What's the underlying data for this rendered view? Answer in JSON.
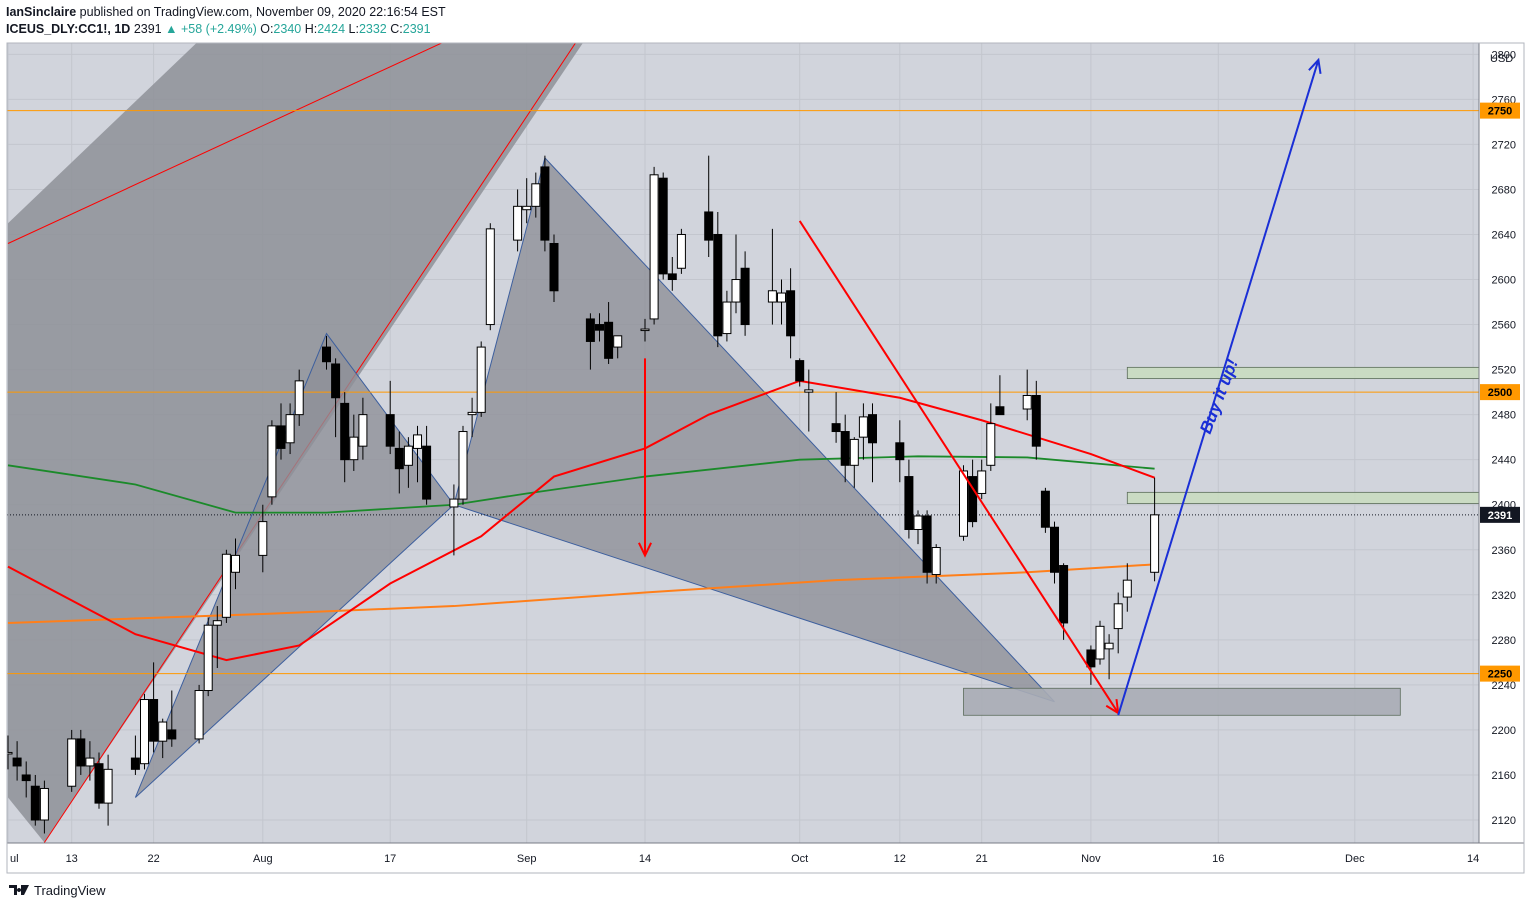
{
  "header": {
    "author": "IanSinclaire",
    "published_text": "published on TradingView.com, November 09, 2020 22:16:54 EST",
    "symbol": "ICEUS_DLY:CC1!, 1D",
    "last": "2391",
    "change": "+58 (+2.49%)",
    "o_label": "O:",
    "o_value": "2340",
    "h_label": "H:",
    "h_value": "2424",
    "l_label": "L:",
    "l_value": "2332",
    "c_label": "C:",
    "c_value": "2391"
  },
  "footer": {
    "brand": "TradingView"
  },
  "colors": {
    "background": "#d1d4dc",
    "up_candle": "#ffffff",
    "down_candle": "#000000",
    "ma_red": "#ff0000",
    "ma_green": "#1b8a2a",
    "ma_orange": "#ff7f1a",
    "level_orange": "#ff9800",
    "blue_arrow": "#1a2fd6",
    "zone_green": "#c9dcc0",
    "zone_gray": "#a9acb5",
    "pattern_fill": "#8e9098",
    "change_text": "#26a69a"
  },
  "chart_data": {
    "type": "candlestick",
    "currency": "USD",
    "ylim": [
      2100,
      2795
    ],
    "y_ticks": [
      2120,
      2160,
      2200,
      2240,
      2280,
      2320,
      2360,
      2400,
      2440,
      2480,
      2520,
      2560,
      2600,
      2640,
      2680,
      2720,
      2760,
      2800
    ],
    "x_ticks": [
      {
        "label": "ul",
        "date": "2020-07-06"
      },
      {
        "label": "13",
        "date": "2020-07-13"
      },
      {
        "label": "22",
        "date": "2020-07-22"
      },
      {
        "label": "Aug",
        "date": "2020-08-03"
      },
      {
        "label": "17",
        "date": "2020-08-17"
      },
      {
        "label": "Sep",
        "date": "2020-09-01"
      },
      {
        "label": "14",
        "date": "2020-09-14"
      },
      {
        "label": "Oct",
        "date": "2020-10-01"
      },
      {
        "label": "12",
        "date": "2020-10-12"
      },
      {
        "label": "21",
        "date": "2020-10-21"
      },
      {
        "label": "Nov",
        "date": "2020-11-02"
      },
      {
        "label": "16",
        "date": "2020-11-16"
      },
      {
        "label": "Dec",
        "date": "2020-12-01"
      },
      {
        "label": "14",
        "date": "2020-12-14"
      }
    ],
    "candles": [
      {
        "d": "2020-07-06",
        "o": 2180,
        "h": 2195,
        "l": 2165,
        "c": 2180
      },
      {
        "d": "2020-07-07",
        "o": 2175,
        "h": 2190,
        "l": 2155,
        "c": 2168
      },
      {
        "d": "2020-07-08",
        "o": 2160,
        "h": 2172,
        "l": 2140,
        "c": 2155
      },
      {
        "d": "2020-07-09",
        "o": 2150,
        "h": 2160,
        "l": 2115,
        "c": 2120
      },
      {
        "d": "2020-07-10",
        "o": 2120,
        "h": 2155,
        "l": 2108,
        "c": 2148
      },
      {
        "d": "2020-07-13",
        "o": 2150,
        "h": 2200,
        "l": 2145,
        "c": 2192
      },
      {
        "d": "2020-07-14",
        "o": 2192,
        "h": 2200,
        "l": 2160,
        "c": 2168
      },
      {
        "d": "2020-07-15",
        "o": 2168,
        "h": 2190,
        "l": 2155,
        "c": 2175
      },
      {
        "d": "2020-07-16",
        "o": 2170,
        "h": 2180,
        "l": 2130,
        "c": 2135
      },
      {
        "d": "2020-07-17",
        "o": 2135,
        "h": 2178,
        "l": 2115,
        "c": 2165
      },
      {
        "d": "2020-07-20",
        "o": 2175,
        "h": 2195,
        "l": 2160,
        "c": 2165
      },
      {
        "d": "2020-07-21",
        "o": 2170,
        "h": 2232,
        "l": 2165,
        "c": 2227
      },
      {
        "d": "2020-07-22",
        "o": 2227,
        "h": 2260,
        "l": 2180,
        "c": 2190
      },
      {
        "d": "2020-07-23",
        "o": 2190,
        "h": 2210,
        "l": 2175,
        "c": 2207
      },
      {
        "d": "2020-07-24",
        "o": 2200,
        "h": 2235,
        "l": 2185,
        "c": 2192
      },
      {
        "d": "2020-07-27",
        "o": 2192,
        "h": 2240,
        "l": 2188,
        "c": 2235
      },
      {
        "d": "2020-07-28",
        "o": 2235,
        "h": 2300,
        "l": 2230,
        "c": 2293
      },
      {
        "d": "2020-07-29",
        "o": 2293,
        "h": 2310,
        "l": 2255,
        "c": 2297
      },
      {
        "d": "2020-07-30",
        "o": 2300,
        "h": 2360,
        "l": 2295,
        "c": 2356
      },
      {
        "d": "2020-07-31",
        "o": 2340,
        "h": 2370,
        "l": 2325,
        "c": 2355
      },
      {
        "d": "2020-08-03",
        "o": 2355,
        "h": 2400,
        "l": 2340,
        "c": 2385
      },
      {
        "d": "2020-08-04",
        "o": 2407,
        "h": 2475,
        "l": 2400,
        "c": 2470
      },
      {
        "d": "2020-08-05",
        "o": 2470,
        "h": 2490,
        "l": 2440,
        "c": 2450
      },
      {
        "d": "2020-08-06",
        "o": 2455,
        "h": 2490,
        "l": 2445,
        "c": 2480
      },
      {
        "d": "2020-08-07",
        "o": 2480,
        "h": 2520,
        "l": 2470,
        "c": 2510
      },
      {
        "d": "2020-08-10",
        "o": 2540,
        "h": 2550,
        "l": 2520,
        "c": 2527
      },
      {
        "d": "2020-08-11",
        "o": 2525,
        "h": 2530,
        "l": 2460,
        "c": 2495
      },
      {
        "d": "2020-08-12",
        "o": 2490,
        "h": 2500,
        "l": 2420,
        "c": 2440
      },
      {
        "d": "2020-08-13",
        "o": 2440,
        "h": 2480,
        "l": 2430,
        "c": 2460
      },
      {
        "d": "2020-08-14",
        "o": 2452,
        "h": 2495,
        "l": 2440,
        "c": 2480
      },
      {
        "d": "2020-08-17",
        "o": 2480,
        "h": 2510,
        "l": 2445,
        "c": 2452
      },
      {
        "d": "2020-08-18",
        "o": 2450,
        "h": 2465,
        "l": 2410,
        "c": 2432
      },
      {
        "d": "2020-08-19",
        "o": 2435,
        "h": 2460,
        "l": 2415,
        "c": 2452
      },
      {
        "d": "2020-08-20",
        "o": 2450,
        "h": 2470,
        "l": 2420,
        "c": 2462
      },
      {
        "d": "2020-08-21",
        "o": 2452,
        "h": 2470,
        "l": 2400,
        "c": 2405
      },
      {
        "d": "2020-08-24",
        "o": 2398,
        "h": 2418,
        "l": 2355,
        "c": 2405
      },
      {
        "d": "2020-08-25",
        "o": 2405,
        "h": 2470,
        "l": 2400,
        "c": 2465
      },
      {
        "d": "2020-08-26",
        "o": 2480,
        "h": 2495,
        "l": 2460,
        "c": 2482
      },
      {
        "d": "2020-08-27",
        "o": 2482,
        "h": 2545,
        "l": 2478,
        "c": 2540
      },
      {
        "d": "2020-08-28",
        "o": 2560,
        "h": 2650,
        "l": 2555,
        "c": 2645
      },
      {
        "d": "2020-08-31",
        "o": 2635,
        "h": 2680,
        "l": 2625,
        "c": 2665
      },
      {
        "d": "2020-09-01",
        "o": 2662,
        "h": 2690,
        "l": 2650,
        "c": 2665
      },
      {
        "d": "2020-09-02",
        "o": 2665,
        "h": 2695,
        "l": 2655,
        "c": 2685
      },
      {
        "d": "2020-09-03",
        "o": 2700,
        "h": 2710,
        "l": 2625,
        "c": 2635
      },
      {
        "d": "2020-09-04",
        "o": 2632,
        "h": 2640,
        "l": 2580,
        "c": 2590
      },
      {
        "d": "2020-09-08",
        "o": 2565,
        "h": 2570,
        "l": 2520,
        "c": 2545
      },
      {
        "d": "2020-09-09",
        "o": 2560,
        "h": 2570,
        "l": 2545,
        "c": 2555
      },
      {
        "d": "2020-09-10",
        "o": 2562,
        "h": 2580,
        "l": 2525,
        "c": 2530
      },
      {
        "d": "2020-09-11",
        "o": 2540,
        "h": 2550,
        "l": 2530,
        "c": 2550
      },
      {
        "d": "2020-09-14",
        "o": 2555,
        "h": 2565,
        "l": 2545,
        "c": 2556
      },
      {
        "d": "2020-09-15",
        "o": 2565,
        "h": 2700,
        "l": 2560,
        "c": 2693
      },
      {
        "d": "2020-09-16",
        "o": 2690,
        "h": 2695,
        "l": 2600,
        "c": 2605
      },
      {
        "d": "2020-09-17",
        "o": 2605,
        "h": 2620,
        "l": 2590,
        "c": 2600
      },
      {
        "d": "2020-09-18",
        "o": 2610,
        "h": 2645,
        "l": 2605,
        "c": 2640
      },
      {
        "d": "2020-09-21",
        "o": 2660,
        "h": 2710,
        "l": 2620,
        "c": 2635
      },
      {
        "d": "2020-09-22",
        "o": 2640,
        "h": 2660,
        "l": 2540,
        "c": 2550
      },
      {
        "d": "2020-09-23",
        "o": 2552,
        "h": 2590,
        "l": 2545,
        "c": 2580
      },
      {
        "d": "2020-09-24",
        "o": 2580,
        "h": 2640,
        "l": 2570,
        "c": 2600
      },
      {
        "d": "2020-09-25",
        "o": 2610,
        "h": 2625,
        "l": 2550,
        "c": 2560
      },
      {
        "d": "2020-09-28",
        "o": 2580,
        "h": 2645,
        "l": 2560,
        "c": 2590
      },
      {
        "d": "2020-09-29",
        "o": 2580,
        "h": 2600,
        "l": 2560,
        "c": 2588
      },
      {
        "d": "2020-09-30",
        "o": 2590,
        "h": 2610,
        "l": 2530,
        "c": 2550
      },
      {
        "d": "2020-10-01",
        "o": 2528,
        "h": 2530,
        "l": 2505,
        "c": 2510
      },
      {
        "d": "2020-10-02",
        "o": 2500,
        "h": 2520,
        "l": 2465,
        "c": 2502
      },
      {
        "d": "2020-10-05",
        "o": 2472,
        "h": 2500,
        "l": 2455,
        "c": 2465
      },
      {
        "d": "2020-10-06",
        "o": 2465,
        "h": 2480,
        "l": 2420,
        "c": 2435
      },
      {
        "d": "2020-10-07",
        "o": 2435,
        "h": 2460,
        "l": 2415,
        "c": 2458
      },
      {
        "d": "2020-10-08",
        "o": 2460,
        "h": 2490,
        "l": 2440,
        "c": 2478
      },
      {
        "d": "2020-10-09",
        "o": 2480,
        "h": 2490,
        "l": 2420,
        "c": 2455
      },
      {
        "d": "2020-10-12",
        "o": 2455,
        "h": 2475,
        "l": 2420,
        "c": 2440
      },
      {
        "d": "2020-10-13",
        "o": 2425,
        "h": 2440,
        "l": 2370,
        "c": 2378
      },
      {
        "d": "2020-10-14",
        "o": 2378,
        "h": 2395,
        "l": 2365,
        "c": 2390
      },
      {
        "d": "2020-10-15",
        "o": 2390,
        "h": 2395,
        "l": 2330,
        "c": 2340
      },
      {
        "d": "2020-10-16",
        "o": 2338,
        "h": 2365,
        "l": 2330,
        "c": 2362
      },
      {
        "d": "2020-10-19",
        "o": 2372,
        "h": 2435,
        "l": 2368,
        "c": 2430
      },
      {
        "d": "2020-10-20",
        "o": 2425,
        "h": 2440,
        "l": 2380,
        "c": 2385
      },
      {
        "d": "2020-10-21",
        "o": 2410,
        "h": 2440,
        "l": 2405,
        "c": 2430
      },
      {
        "d": "2020-10-22",
        "o": 2435,
        "h": 2490,
        "l": 2430,
        "c": 2472
      },
      {
        "d": "2020-10-23",
        "o": 2487,
        "h": 2515,
        "l": 2480,
        "c": 2480
      },
      {
        "d": "2020-10-26",
        "o": 2485,
        "h": 2520,
        "l": 2475,
        "c": 2497
      },
      {
        "d": "2020-10-27",
        "o": 2497,
        "h": 2510,
        "l": 2440,
        "c": 2452
      },
      {
        "d": "2020-10-28",
        "o": 2412,
        "h": 2415,
        "l": 2375,
        "c": 2380
      },
      {
        "d": "2020-10-29",
        "o": 2380,
        "h": 2385,
        "l": 2330,
        "c": 2340
      },
      {
        "d": "2020-10-30",
        "o": 2346,
        "h": 2348,
        "l": 2280,
        "c": 2295
      },
      {
        "d": "2020-11-02",
        "o": 2271,
        "h": 2275,
        "l": 2240,
        "c": 2256
      },
      {
        "d": "2020-11-03",
        "o": 2263,
        "h": 2297,
        "l": 2258,
        "c": 2292
      },
      {
        "d": "2020-11-04",
        "o": 2272,
        "h": 2285,
        "l": 2245,
        "c": 2277
      },
      {
        "d": "2020-11-05",
        "o": 2290,
        "h": 2322,
        "l": 2268,
        "c": 2312
      },
      {
        "d": "2020-11-06",
        "o": 2318,
        "h": 2348,
        "l": 2305,
        "c": 2333
      },
      {
        "d": "2020-11-09",
        "o": 2340,
        "h": 2424,
        "l": 2332,
        "c": 2391
      }
    ],
    "price_levels": [
      2750,
      2500,
      2250
    ],
    "last_price": 2391,
    "annotations": [
      {
        "text": "Buy it up!"
      }
    ]
  }
}
